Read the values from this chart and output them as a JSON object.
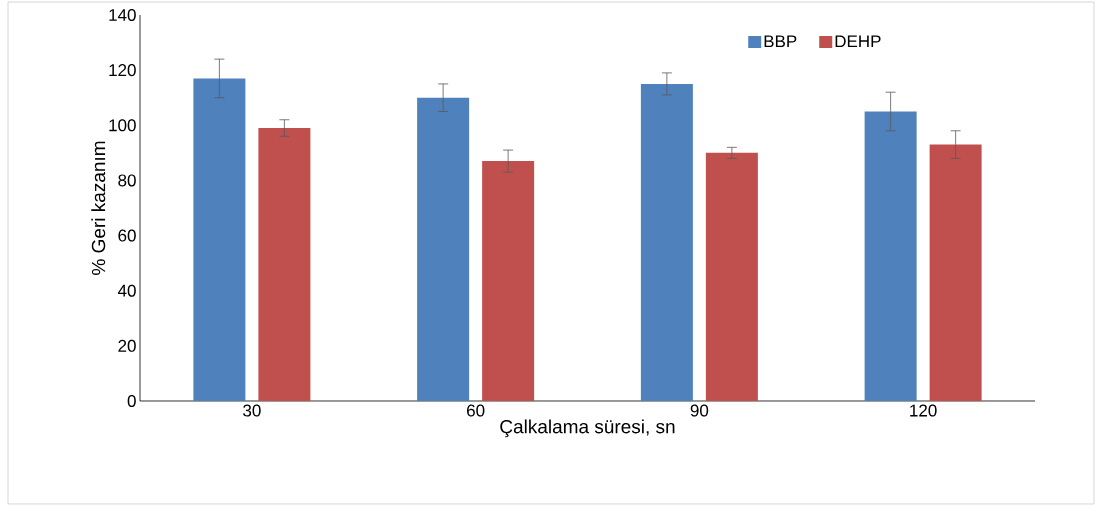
{
  "chart_data": {
    "type": "bar",
    "xlabel": "Çalkalama süresi, sn",
    "ylabel": "% Geri kazanım",
    "categories": [
      "30",
      "60",
      "90",
      "120"
    ],
    "series": [
      {
        "name": "BBP",
        "color": "#4f81bd",
        "values": [
          117,
          110,
          115,
          105
        ],
        "errors": [
          7,
          5,
          4,
          7
        ]
      },
      {
        "name": "DEHP",
        "color": "#c0504d",
        "values": [
          99,
          87,
          90,
          93
        ],
        "errors": [
          3,
          4,
          2,
          5
        ]
      }
    ],
    "ylim": [
      0,
      140
    ],
    "yticks": [
      0,
      20,
      40,
      60,
      80,
      100,
      120,
      140
    ],
    "legend": "top right"
  }
}
